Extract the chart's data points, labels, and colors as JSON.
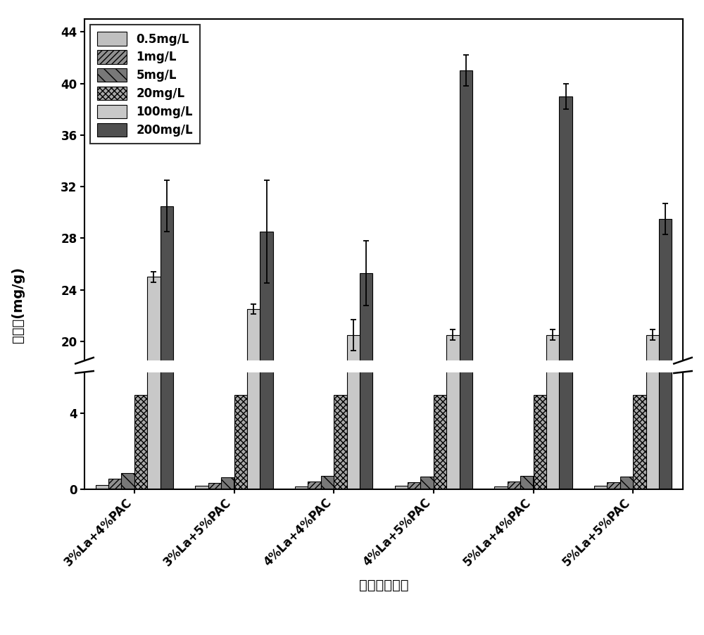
{
  "categories": [
    "3%La+4%PAC",
    "3%La+5%PAC",
    "4%La+4%PAC",
    "4%La+5%PAC",
    "5%La+4%PAC",
    "5%La+5%PAC"
  ],
  "series_labels": [
    "0.5mg/L",
    "1mg/L",
    "5mg/L",
    "20mg/L",
    "100mg/L",
    "200mg/L"
  ],
  "values": [
    [
      0.2,
      0.18,
      0.15,
      0.18,
      0.15,
      0.18
    ],
    [
      0.55,
      0.32,
      0.38,
      0.35,
      0.38,
      0.37
    ],
    [
      0.85,
      0.6,
      0.7,
      0.65,
      0.68,
      0.65
    ],
    [
      5.0,
      5.0,
      5.0,
      5.0,
      5.0,
      5.0
    ],
    [
      25.0,
      22.5,
      20.5,
      20.5,
      20.5,
      20.5
    ],
    [
      30.5,
      28.5,
      25.3,
      41.0,
      39.0,
      29.5
    ]
  ],
  "errors": [
    [
      0.03,
      0.03,
      0.03,
      0.03,
      0.03,
      0.03
    ],
    [
      0.05,
      0.05,
      0.05,
      0.05,
      0.05,
      0.05
    ],
    [
      0.08,
      0.08,
      0.08,
      0.08,
      0.08,
      0.08
    ],
    [
      0.15,
      0.15,
      0.15,
      0.15,
      0.15,
      0.15
    ],
    [
      0.4,
      0.4,
      1.2,
      0.4,
      0.4,
      0.4
    ],
    [
      2.0,
      4.0,
      2.5,
      1.2,
      1.0,
      1.2
    ]
  ],
  "bar_colors": [
    "#c0c0c0",
    "#909090",
    "#787878",
    "#a8a8a8",
    "#c8c8c8",
    "#505050"
  ],
  "hatch_patterns": [
    "",
    "////",
    "\\\\",
    "xxxx",
    "",
    ""
  ],
  "ylabel": "吸附量(mg/g)",
  "xlabel": "锶铝添加比例",
  "yticks_lower": [
    0,
    4
  ],
  "yticks_upper": [
    20,
    24,
    28,
    32,
    36,
    40,
    44
  ],
  "ylim_lower": [
    0,
    6.2
  ],
  "ylim_upper": [
    18.5,
    45
  ],
  "background_color": "#ffffff"
}
